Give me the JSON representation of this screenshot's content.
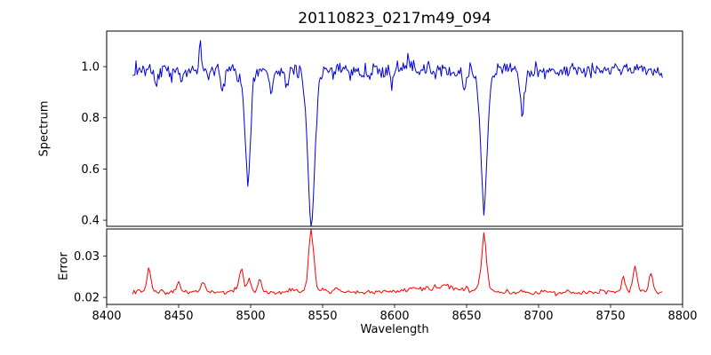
{
  "chart_data": {
    "type": "line",
    "title": "20110823_0217m49_094",
    "xlabel": "Wavelength",
    "seed": 823,
    "background": "#ffffff",
    "axis_color": "#000000",
    "x_axis": {
      "min": 8400,
      "max": 8800,
      "ticks": [
        8400,
        8450,
        8500,
        8550,
        8600,
        8650,
        8700,
        8750,
        8800
      ]
    },
    "x_range": [
      8418,
      8786
    ],
    "panels": [
      {
        "name": "spectrum",
        "ylabel": "Spectrum",
        "color": "#0000dd",
        "ylim": [
          0.376,
          1.139
        ],
        "yticks": [
          0.4,
          0.6,
          0.8,
          1.0
        ],
        "ytick_labels": [
          "0.4",
          "0.6",
          "0.8",
          "1.0"
        ],
        "baseline": 0.985,
        "sample_step": 0.8,
        "noise": {
          "independent_sigma": 0.013,
          "walk_sigma": 0.009,
          "walk_corr": 0.6,
          "feature_jitter": 0
        },
        "features": [
          {
            "center": 8434.0,
            "amp": -0.05,
            "width": 1.2
          },
          {
            "center": 8465.0,
            "amp": 0.12,
            "width": 0.7
          },
          {
            "center": 8480.5,
            "amp": -0.08,
            "width": 1.0
          },
          {
            "center": 8498.0,
            "amp": -0.432,
            "width": 2.0
          },
          {
            "center": 8514.0,
            "amp": -0.09,
            "width": 1.2
          },
          {
            "center": 8525.0,
            "amp": -0.045,
            "width": 1.0
          },
          {
            "center": 8542.1,
            "amp": -0.6,
            "width": 2.6
          },
          {
            "center": 8582.0,
            "amp": -0.05,
            "width": 1.0
          },
          {
            "center": 8598.0,
            "amp": -0.055,
            "width": 1.0
          },
          {
            "center": 8648.0,
            "amp": -0.05,
            "width": 1.0
          },
          {
            "center": 8662.1,
            "amp": -0.528,
            "width": 2.2
          },
          {
            "center": 8688.6,
            "amp": -0.16,
            "width": 1.4
          },
          {
            "center": 8713.0,
            "amp": -0.05,
            "width": 1.0
          },
          {
            "center": 8736.0,
            "amp": -0.045,
            "width": 1.0
          }
        ]
      },
      {
        "name": "error",
        "ylabel": "Error",
        "color": "#ff0000",
        "ylim": [
          0.0183,
          0.0366
        ],
        "yticks": [
          0.02,
          0.03
        ],
        "ytick_labels": [
          "0.02",
          "0.03"
        ],
        "baseline": 0.0212,
        "sample_step": 1.0,
        "noise": {
          "independent_sigma": 0.00022,
          "walk_sigma": 0.00018,
          "walk_corr": 0.5,
          "feature_jitter": 0.08
        },
        "features": [
          {
            "center": 8429.5,
            "amp": 0.0062,
            "width": 1.4
          },
          {
            "center": 8450.0,
            "amp": 0.0026,
            "width": 1.2
          },
          {
            "center": 8467.0,
            "amp": 0.0033,
            "width": 1.4
          },
          {
            "center": 8493.5,
            "amp": 0.0058,
            "width": 1.6
          },
          {
            "center": 8499.0,
            "amp": 0.0035,
            "width": 1.2
          },
          {
            "center": 8506.0,
            "amp": 0.003,
            "width": 1.2
          },
          {
            "center": 8542.1,
            "amp": 0.015,
            "width": 1.9
          },
          {
            "center": 8560.0,
            "amp": 0.0012,
            "width": 1.2
          },
          {
            "center": 8630.0,
            "amp": 0.0015,
            "width": 16
          },
          {
            "center": 8662.1,
            "amp": 0.0132,
            "width": 1.9
          },
          {
            "center": 8759.0,
            "amp": 0.004,
            "width": 1.4
          },
          {
            "center": 8767.0,
            "amp": 0.0058,
            "width": 1.5
          },
          {
            "center": 8778.0,
            "amp": 0.0046,
            "width": 1.4
          }
        ]
      }
    ]
  }
}
